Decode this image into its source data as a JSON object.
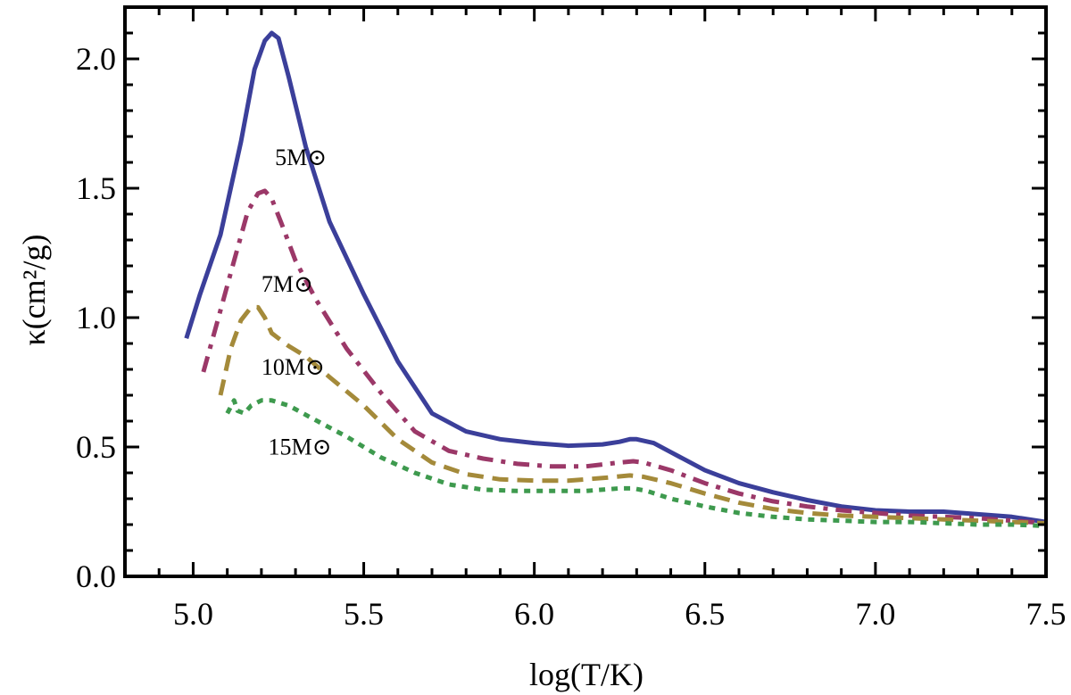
{
  "chart_data": {
    "type": "line",
    "xlabel": "log(T/K)",
    "ylabel": "κ(cm²/g)",
    "xlim": [
      4.8,
      7.5
    ],
    "ylim": [
      0.0,
      2.2
    ],
    "xticks": [
      5.0,
      5.5,
      6.0,
      6.5,
      7.0,
      7.5
    ],
    "xtick_labels": [
      "5.0",
      "5.5",
      "6.0",
      "6.5",
      "7.0",
      "7.5"
    ],
    "yticks": [
      0.0,
      0.5,
      1.0,
      1.5,
      2.0
    ],
    "ytick_labels": [
      "0.0",
      "0.5",
      "1.0",
      "1.5",
      "2.0"
    ],
    "grid": false,
    "series": [
      {
        "name": "5M⊙",
        "color": "#3b3f9a",
        "dash": "solid",
        "label_at": [
          5.24,
          1.59
        ],
        "x": [
          4.98,
          5.02,
          5.08,
          5.14,
          5.18,
          5.21,
          5.23,
          5.25,
          5.28,
          5.33,
          5.4,
          5.5,
          5.6,
          5.7,
          5.8,
          5.9,
          6.0,
          6.1,
          6.2,
          6.25,
          6.28,
          6.3,
          6.35,
          6.4,
          6.5,
          6.6,
          6.7,
          6.8,
          6.9,
          7.0,
          7.1,
          7.2,
          7.3,
          7.4,
          7.5
        ],
        "values": [
          0.92,
          1.09,
          1.32,
          1.68,
          1.96,
          2.07,
          2.1,
          2.08,
          1.93,
          1.66,
          1.37,
          1.09,
          0.83,
          0.63,
          0.56,
          0.53,
          0.515,
          0.505,
          0.51,
          0.52,
          0.53,
          0.53,
          0.515,
          0.48,
          0.41,
          0.36,
          0.325,
          0.295,
          0.27,
          0.255,
          0.25,
          0.25,
          0.24,
          0.23,
          0.21
        ]
      },
      {
        "name": "7M⊙",
        "color": "#9b3868",
        "dash": "dashdot",
        "label_at": [
          5.2,
          1.1
        ],
        "x": [
          5.03,
          5.07,
          5.12,
          5.16,
          5.19,
          5.21,
          5.23,
          5.26,
          5.3,
          5.36,
          5.45,
          5.55,
          5.65,
          5.75,
          5.85,
          5.95,
          6.05,
          6.15,
          6.25,
          6.29,
          6.32,
          6.4,
          6.5,
          6.6,
          6.7,
          6.8,
          6.9,
          7.0,
          7.1,
          7.2,
          7.3,
          7.4,
          7.5
        ],
        "values": [
          0.79,
          0.98,
          1.22,
          1.41,
          1.48,
          1.49,
          1.46,
          1.36,
          1.22,
          1.07,
          0.88,
          0.71,
          0.56,
          0.485,
          0.455,
          0.435,
          0.425,
          0.425,
          0.44,
          0.445,
          0.44,
          0.41,
          0.36,
          0.32,
          0.29,
          0.27,
          0.255,
          0.245,
          0.235,
          0.23,
          0.225,
          0.215,
          0.205
        ]
      },
      {
        "name": "10M⊙",
        "color": "#a48a3a",
        "dash": "dashed",
        "label_at": [
          5.2,
          0.78
        ],
        "x": [
          5.08,
          5.11,
          5.14,
          5.17,
          5.19,
          5.21,
          5.23,
          5.25,
          5.28,
          5.33,
          5.4,
          5.5,
          5.6,
          5.7,
          5.8,
          5.9,
          6.0,
          6.1,
          6.2,
          6.28,
          6.32,
          6.4,
          6.5,
          6.6,
          6.7,
          6.8,
          6.9,
          7.0,
          7.1,
          7.2,
          7.3,
          7.4,
          7.5
        ],
        "values": [
          0.7,
          0.88,
          0.99,
          1.04,
          1.04,
          1.0,
          0.94,
          0.92,
          0.89,
          0.85,
          0.77,
          0.66,
          0.53,
          0.44,
          0.395,
          0.375,
          0.37,
          0.37,
          0.38,
          0.39,
          0.385,
          0.36,
          0.32,
          0.285,
          0.26,
          0.245,
          0.235,
          0.23,
          0.225,
          0.22,
          0.215,
          0.21,
          0.205
        ]
      },
      {
        "name": "15M⊙",
        "color": "#3e9a4e",
        "dash": "dotted",
        "label_at": [
          5.22,
          0.47
        ],
        "x": [
          5.1,
          5.12,
          5.13,
          5.15,
          5.17,
          5.2,
          5.23,
          5.28,
          5.35,
          5.45,
          5.55,
          5.65,
          5.75,
          5.85,
          5.95,
          6.05,
          6.15,
          6.25,
          6.29,
          6.33,
          6.4,
          6.5,
          6.6,
          6.7,
          6.8,
          6.9,
          7.0,
          7.1,
          7.2,
          7.3,
          7.4,
          7.5
        ],
        "values": [
          0.63,
          0.68,
          0.64,
          0.63,
          0.66,
          0.68,
          0.68,
          0.66,
          0.61,
          0.54,
          0.46,
          0.4,
          0.355,
          0.335,
          0.33,
          0.33,
          0.33,
          0.34,
          0.34,
          0.33,
          0.3,
          0.27,
          0.245,
          0.23,
          0.22,
          0.215,
          0.21,
          0.21,
          0.205,
          0.2,
          0.2,
          0.195
        ]
      }
    ]
  }
}
